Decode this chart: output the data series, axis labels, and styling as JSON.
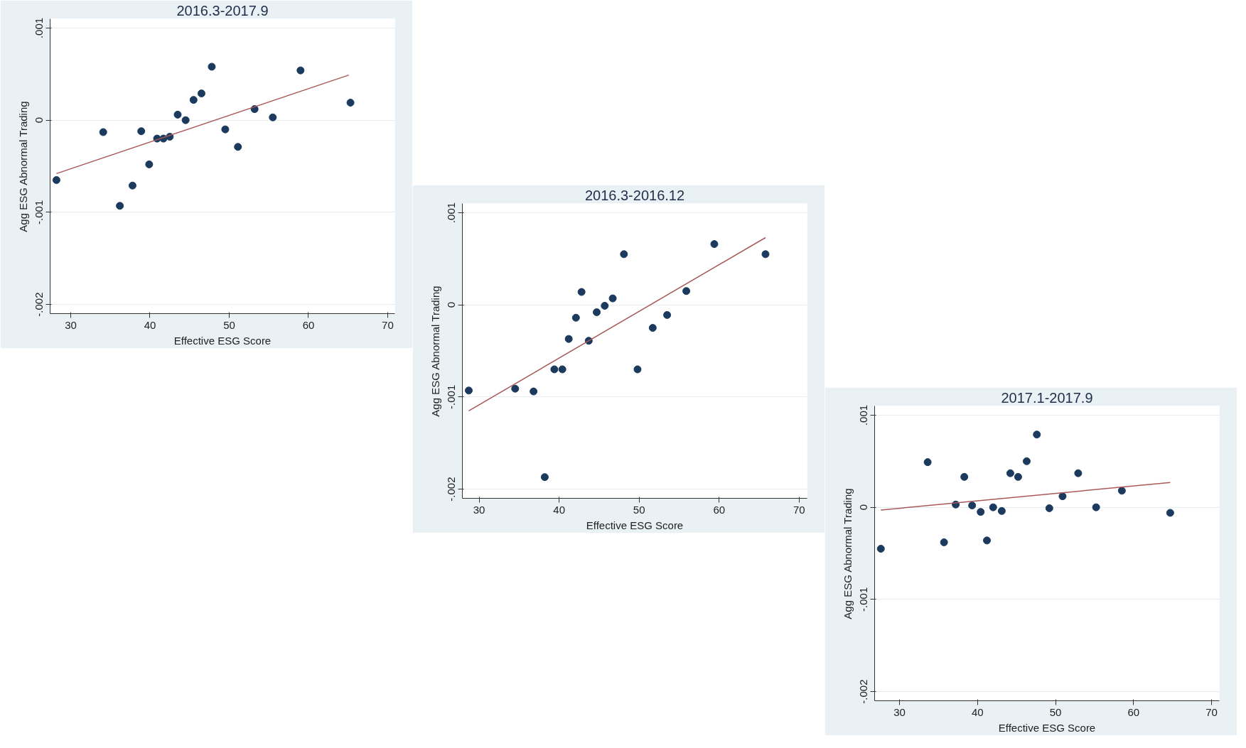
{
  "chart_data": [
    {
      "type": "scatter",
      "title": "2016.3-2017.9",
      "xlabel": "Effective ESG Score",
      "ylabel": "Agg ESG Abnormal Trading",
      "xlim": [
        27.4,
        70.9
      ],
      "xticks": [
        30,
        40,
        50,
        60,
        70
      ],
      "ylim": [
        -0.0021,
        0.0011
      ],
      "yticks": [
        {
          "value": 0.001,
          "label": ".001"
        },
        {
          "value": 0,
          "label": "0"
        },
        {
          "value": -0.001,
          "label": "-.001"
        },
        {
          "value": -0.002,
          "label": "-.002"
        }
      ],
      "grid": "y",
      "series": [
        {
          "color": "#1b3a5e",
          "marker": "circle",
          "x": [
            28.2,
            34.1,
            36.2,
            37.8,
            38.9,
            39.9,
            40.9,
            41.7,
            42.5,
            43.5,
            44.5,
            45.5,
            46.5,
            47.8,
            49.5,
            51.1,
            53.2,
            55.5,
            59.0,
            65.3
          ],
          "values": [
            -0.00065,
            -0.00013,
            -0.00093,
            -0.00071,
            -0.00012,
            -0.00048,
            -0.0002,
            -0.0002,
            -0.00018,
            6e-05,
            0.0,
            0.00022,
            0.00029,
            0.00058,
            -0.0001,
            -0.00029,
            0.00012,
            3e-05,
            0.00054,
            0.00019
          ]
        },
        {
          "type": "line",
          "color": "#a85858",
          "marker": "none",
          "x": [
            28.2,
            65.1
          ],
          "values": [
            -0.00058,
            0.00049
          ]
        }
      ]
    },
    {
      "type": "scatter",
      "title": "2016.3-2016.12",
      "xlabel": "Effective ESG Score",
      "ylabel": "Agg ESG Abnormal Trading",
      "xlim": [
        27.9,
        71.0
      ],
      "xticks": [
        30,
        40,
        50,
        60,
        70
      ],
      "ylim": [
        -0.0021,
        0.0011
      ],
      "yticks": [
        {
          "value": 0.001,
          "label": ".001"
        },
        {
          "value": 0,
          "label": "0"
        },
        {
          "value": -0.001,
          "label": "-.001"
        },
        {
          "value": -0.002,
          "label": "-.002"
        }
      ],
      "grid": "y",
      "series": [
        {
          "color": "#1b3a5e",
          "marker": "circle",
          "x": [
            28.7,
            34.5,
            36.8,
            38.2,
            39.4,
            40.4,
            41.2,
            42.1,
            42.8,
            43.7,
            44.7,
            45.7,
            46.7,
            48.1,
            49.8,
            51.7,
            53.5,
            55.9,
            59.4,
            65.8
          ],
          "values": [
            -0.00093,
            -0.00091,
            -0.00094,
            -0.00187,
            -0.0007,
            -0.0007,
            -0.00037,
            -0.00014,
            0.00014,
            -0.00039,
            -8e-05,
            -1e-05,
            7e-05,
            0.00055,
            -0.0007,
            -0.00025,
            -0.00011,
            0.00015,
            0.00066,
            0.00055
          ]
        },
        {
          "type": "line",
          "color": "#a85858",
          "marker": "none",
          "x": [
            28.7,
            65.8
          ],
          "values": [
            -0.00115,
            0.00073
          ]
        }
      ]
    },
    {
      "type": "scatter",
      "title": "2017.1-2017.9",
      "xlabel": "Effective ESG Score",
      "ylabel": "Agg ESG Abnormal Trading",
      "xlim": [
        26.8,
        71.0
      ],
      "xticks": [
        30,
        40,
        50,
        60,
        70
      ],
      "ylim": [
        -0.0021,
        0.0011
      ],
      "yticks": [
        {
          "value": 0.001,
          "label": ".001"
        },
        {
          "value": 0,
          "label": "0"
        },
        {
          "value": -0.001,
          "label": "-.001"
        },
        {
          "value": -0.002,
          "label": "-.002"
        }
      ],
      "grid": "y",
      "series": [
        {
          "color": "#1b3a5e",
          "marker": "circle",
          "x": [
            27.6,
            33.6,
            35.7,
            37.2,
            38.3,
            39.3,
            40.4,
            41.2,
            42.0,
            43.1,
            44.2,
            45.2,
            46.3,
            47.6,
            49.2,
            50.9,
            52.9,
            55.2,
            58.5,
            64.7
          ],
          "values": [
            -0.00045,
            0.00049,
            -0.00038,
            3e-05,
            0.00033,
            2e-05,
            -5e-05,
            -0.00036,
            0.0,
            -4e-05,
            0.00037,
            0.00033,
            0.0005,
            0.00079,
            -1e-05,
            0.00012,
            0.00037,
            0.0,
            0.00018,
            -6e-05
          ]
        },
        {
          "type": "line",
          "color": "#a85858",
          "marker": "none",
          "x": [
            27.6,
            64.7
          ],
          "values": [
            -3e-05,
            0.00027
          ]
        }
      ]
    }
  ]
}
